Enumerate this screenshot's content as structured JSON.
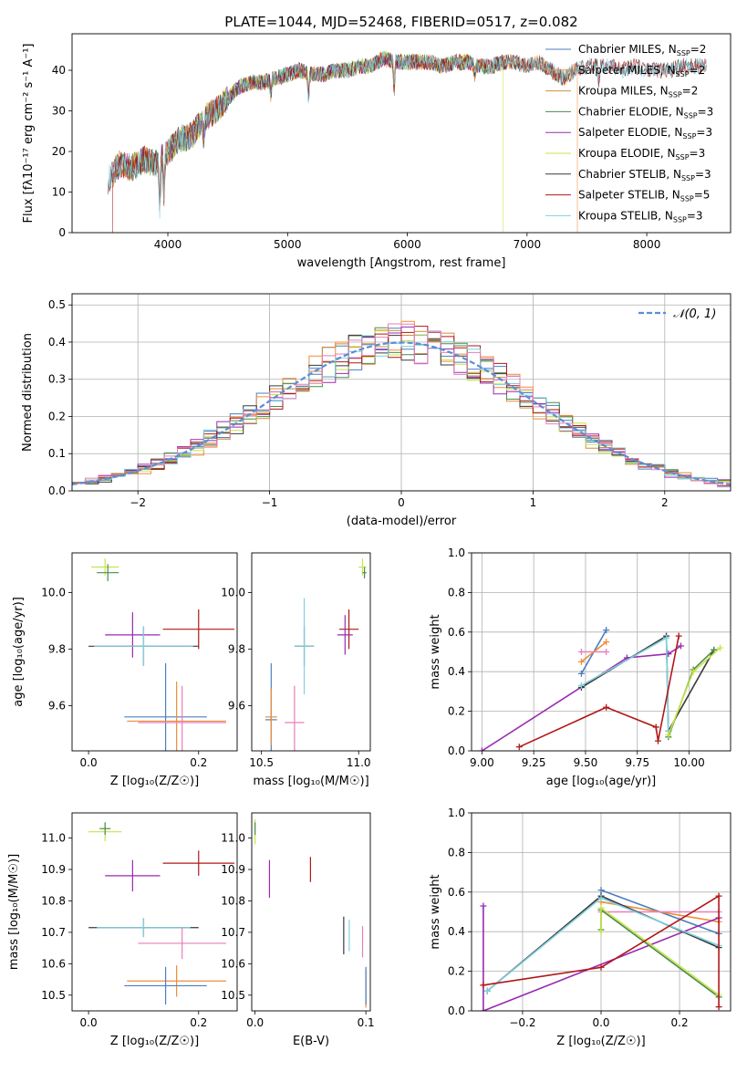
{
  "figure_title": "PLATE=1044, MJD=52468, FIBERID=0517, z=0.082",
  "palette": {
    "chab_miles": "#4a7fc1",
    "salp_miles": "#ef8c3a",
    "krou_miles": "#d78d38",
    "chab_elodie": "#4c8c4a",
    "salp_elodie": "#9a2ab1",
    "krou_elodie": "#c8e34a",
    "chab_stelib": "#3a3a3a",
    "salp_stelib": "#b01818",
    "krou_stelib": "#7fd0e0",
    "pink": "#e77fb8",
    "normal": "#5a8ed6"
  },
  "chart_data": [
    {
      "id": "spectrum",
      "type": "line",
      "title": "PLATE=1044, MJD=52468, FIBERID=0517, z=0.082",
      "xlabel": "wavelength [Angstrom, rest frame]",
      "ylabel": "Flux [fλ10⁻¹⁷ erg cm⁻² s⁻¹ A⁻¹]",
      "xlim": [
        3200,
        8700
      ],
      "ylim": [
        0,
        49
      ],
      "xticks": [
        "4000",
        "5000",
        "6000",
        "7000",
        "8000"
      ],
      "yticks": [
        "0",
        "10",
        "20",
        "30",
        "40"
      ],
      "legend_position": "top-right",
      "legend": [
        {
          "base": "Chabrier MILES, N",
          "sub": "SSP",
          "tail": "=2",
          "color": "chab_miles"
        },
        {
          "base": "Salpeter MILES, N",
          "sub": "SSP",
          "tail": "=2",
          "color": "salp_miles"
        },
        {
          "base": "Kroupa MILES, N",
          "sub": "SSP",
          "tail": "=2",
          "color": "krou_miles"
        },
        {
          "base": "Chabrier ELODIE, N",
          "sub": "SSP",
          "tail": "=3",
          "color": "chab_elodie"
        },
        {
          "base": "Salpeter ELODIE, N",
          "sub": "SSP",
          "tail": "=3",
          "color": "salp_elodie"
        },
        {
          "base": "Kroupa ELODIE, N",
          "sub": "SSP",
          "tail": "=3",
          "color": "krou_elodie"
        },
        {
          "base": "Chabrier STELIB, N",
          "sub": "SSP",
          "tail": "=3",
          "color": "chab_stelib"
        },
        {
          "base": "Salpeter STELIB, N",
          "sub": "SSP",
          "tail": "=5",
          "color": "salp_stelib"
        },
        {
          "base": "Kroupa STELIB, N",
          "sub": "SSP",
          "tail": "=3",
          "color": "krou_stelib"
        }
      ],
      "continuum": [
        [
          3500,
          13
        ],
        [
          3600,
          17
        ],
        [
          3700,
          16
        ],
        [
          3800,
          18
        ],
        [
          3900,
          17
        ],
        [
          4000,
          20
        ],
        [
          4100,
          23
        ],
        [
          4200,
          24
        ],
        [
          4300,
          28
        ],
        [
          4400,
          30
        ],
        [
          4500,
          33
        ],
        [
          4600,
          36
        ],
        [
          4700,
          37
        ],
        [
          4800,
          37
        ],
        [
          4900,
          38
        ],
        [
          5000,
          39
        ],
        [
          5100,
          40
        ],
        [
          5200,
          39
        ],
        [
          5300,
          39
        ],
        [
          5400,
          40
        ],
        [
          5500,
          40
        ],
        [
          5600,
          41
        ],
        [
          5700,
          41
        ],
        [
          5800,
          43
        ],
        [
          5900,
          42
        ],
        [
          6000,
          42
        ],
        [
          6100,
          42
        ],
        [
          6200,
          42
        ],
        [
          6300,
          41
        ],
        [
          6400,
          42
        ],
        [
          6500,
          42
        ],
        [
          6600,
          41
        ],
        [
          6700,
          41
        ],
        [
          6800,
          42
        ],
        [
          6900,
          42
        ],
        [
          7000,
          41
        ],
        [
          7100,
          42
        ],
        [
          7200,
          40
        ],
        [
          7300,
          38
        ],
        [
          7400,
          40
        ],
        [
          7500,
          41
        ],
        [
          7600,
          41
        ],
        [
          7700,
          41
        ],
        [
          7800,
          40
        ],
        [
          7900,
          41
        ],
        [
          8000,
          40
        ],
        [
          8100,
          40
        ],
        [
          8200,
          40
        ],
        [
          8300,
          41
        ],
        [
          8400,
          41
        ],
        [
          8500,
          41
        ]
      ],
      "series": [
        {
          "color": "chab_miles",
          "range": [
            3540,
            7420
          ],
          "drop": null
        },
        {
          "color": "salp_miles",
          "range": [
            3540,
            7420
          ],
          "drop": 7420
        },
        {
          "color": "krou_miles",
          "range": [
            3540,
            7420
          ],
          "drop": null
        },
        {
          "color": "chab_elodie",
          "range": [
            3540,
            6800
          ],
          "drop": null
        },
        {
          "color": "salp_elodie",
          "range": [
            3540,
            6800
          ],
          "drop": null
        },
        {
          "color": "krou_elodie",
          "range": [
            3540,
            6800
          ],
          "drop": 6800
        },
        {
          "color": "chab_stelib",
          "range": [
            3500,
            8500
          ],
          "drop": null
        },
        {
          "color": "salp_stelib",
          "range": [
            3500,
            8500
          ],
          "drop": 3540
        },
        {
          "color": "krou_stelib",
          "range": [
            3500,
            8500
          ],
          "drop": null
        }
      ]
    },
    {
      "id": "residuals",
      "type": "histogram",
      "xlabel": "(data-model)/error",
      "ylabel": "Normed distribution",
      "xlim": [
        -2.5,
        2.5
      ],
      "ylim": [
        0,
        0.53
      ],
      "xticks": [
        "−2",
        "−1",
        "0",
        "1",
        "2"
      ],
      "yticks": [
        "0.0",
        "0.1",
        "0.2",
        "0.3",
        "0.4",
        "0.5"
      ],
      "grid": true,
      "legend": "𝒩(0, 1)",
      "legend_position": "top-right",
      "bin_width": 0.1,
      "series_colors": [
        "chab_miles",
        "salp_miles",
        "krou_miles",
        "chab_elodie",
        "salp_elodie",
        "krou_elodie",
        "chab_stelib",
        "salp_stelib",
        "krou_stelib",
        "pink"
      ]
    },
    {
      "id": "age_vs_Z",
      "type": "errorbar",
      "xlabel": "Z [log₁₀(Z/Z☉)]",
      "ylabel": "age  [log₁₀(age/yr)]",
      "xlim": [
        -0.03,
        0.27
      ],
      "ylim": [
        9.44,
        10.14
      ],
      "xticks": [
        "0.0",
        "0.2"
      ],
      "yticks": [
        "9.6",
        "9.8",
        "10.0"
      ],
      "points": [
        {
          "x": 0.03,
          "xerr": 0.025,
          "y": 10.09,
          "yerr": 0.03,
          "color": "krou_elodie"
        },
        {
          "x": 0.035,
          "xerr": 0.02,
          "y": 10.07,
          "yerr": 0.03,
          "color": "chab_elodie"
        },
        {
          "x": 0.08,
          "xerr": 0.05,
          "y": 9.85,
          "yerr": 0.08,
          "color": "salp_elodie"
        },
        {
          "x": 0.2,
          "xerr": 0.065,
          "y": 9.87,
          "yerr": 0.07,
          "color": "salp_stelib"
        },
        {
          "x": 0.1,
          "xerr": 0.1,
          "y": 9.81,
          "yerr": 0.07,
          "color": "chab_stelib"
        },
        {
          "x": 0.1,
          "xerr": 0.09,
          "y": 9.81,
          "yerr": 0.07,
          "color": "krou_stelib"
        },
        {
          "x": 0.14,
          "xerr": 0.075,
          "y": 9.56,
          "yerr": 0.19,
          "color": "chab_miles"
        },
        {
          "x": 0.16,
          "xerr": 0.09,
          "y": 9.545,
          "yerr": 0.14,
          "color": "salp_miles"
        },
        {
          "x": 0.17,
          "xerr": 0.08,
          "y": 9.54,
          "yerr": 0.13,
          "color": "pink"
        }
      ]
    },
    {
      "id": "age_vs_mass",
      "type": "errorbar",
      "xlabel": "mass [log₁₀(M/M☉)]",
      "ylabel": "",
      "xlim": [
        10.45,
        11.06
      ],
      "ylim": [
        9.44,
        10.14
      ],
      "xticks": [
        "10.5",
        "11.0"
      ],
      "yticks": [
        "9.6",
        "9.8",
        "10.0"
      ],
      "points": [
        {
          "x": 11.02,
          "xerr": 0.02,
          "y": 10.09,
          "yerr": 0.03,
          "color": "krou_elodie"
        },
        {
          "x": 11.03,
          "xerr": 0.01,
          "y": 10.07,
          "yerr": 0.02,
          "color": "chab_elodie"
        },
        {
          "x": 10.95,
          "xerr": 0.05,
          "y": 9.87,
          "yerr": 0.07,
          "color": "salp_stelib"
        },
        {
          "x": 10.93,
          "xerr": 0.04,
          "y": 9.85,
          "yerr": 0.07,
          "color": "salp_elodie"
        },
        {
          "x": 10.72,
          "xerr": 0.05,
          "y": 9.81,
          "yerr": 0.07,
          "color": "chab_stelib"
        },
        {
          "x": 10.72,
          "xerr": 0.05,
          "y": 9.81,
          "yerr": 0.17,
          "color": "krou_stelib"
        },
        {
          "x": 10.55,
          "xerr": 0.03,
          "y": 9.55,
          "yerr": 0.2,
          "color": "chab_miles"
        },
        {
          "x": 10.55,
          "xerr": 0.03,
          "y": 9.56,
          "yerr": 0.1,
          "color": "salp_miles"
        },
        {
          "x": 10.67,
          "xerr": 0.05,
          "y": 9.54,
          "yerr": 0.13,
          "color": "pink"
        }
      ]
    },
    {
      "id": "mass_weight_vs_age",
      "type": "line",
      "xlabel": "age  [log₁₀(age/yr)]",
      "ylabel": "mass weight",
      "xlim": [
        8.95,
        10.2
      ],
      "ylim": [
        0,
        1
      ],
      "xticks": [
        "9.00",
        "9.25",
        "9.50",
        "9.75",
        "10.00"
      ],
      "yticks": [
        "0.0",
        "0.2",
        "0.4",
        "0.6",
        "0.8",
        "1.0"
      ],
      "grid": true,
      "series": [
        {
          "color": "chab_miles",
          "x": [
            9.48,
            9.6
          ],
          "y": [
            0.39,
            0.61
          ]
        },
        {
          "color": "salp_miles",
          "x": [
            9.48,
            9.6
          ],
          "y": [
            0.45,
            0.55
          ]
        },
        {
          "color": "pink",
          "x": [
            9.48,
            9.6
          ],
          "y": [
            0.5,
            0.5
          ]
        },
        {
          "color": "salp_elodie",
          "x": [
            9.0,
            9.7,
            9.9,
            9.96
          ],
          "y": [
            0.0,
            0.47,
            0.49,
            0.53
          ]
        },
        {
          "color": "chab_stelib",
          "x": [
            9.48,
            9.89,
            9.9,
            10.12
          ],
          "y": [
            0.32,
            0.58,
            0.1,
            0.51
          ]
        },
        {
          "color": "krou_stelib",
          "x": [
            9.48,
            9.89,
            9.9
          ],
          "y": [
            0.33,
            0.57,
            0.1
          ]
        },
        {
          "color": "chab_elodie",
          "x": [
            9.9,
            10.02,
            10.12
          ],
          "y": [
            0.07,
            0.41,
            0.51
          ]
        },
        {
          "color": "krou_elodie",
          "x": [
            9.9,
            10.02,
            10.15
          ],
          "y": [
            0.08,
            0.4,
            0.52
          ]
        },
        {
          "color": "salp_stelib",
          "x": [
            9.18,
            9.6,
            9.84,
            9.85,
            9.95
          ],
          "y": [
            0.02,
            0.22,
            0.12,
            0.05,
            0.58
          ]
        }
      ]
    },
    {
      "id": "mass_vs_Z",
      "type": "errorbar",
      "xlabel": "Z [log₁₀(Z/Z☉)]",
      "ylabel": "mass [log₁₀(M/M☉)]",
      "xlim": [
        -0.03,
        0.27
      ],
      "ylim": [
        10.45,
        11.08
      ],
      "xticks": [
        "0.0",
        "0.2"
      ],
      "yticks": [
        "10.5",
        "10.6",
        "10.7",
        "10.8",
        "10.9",
        "11.0"
      ],
      "points": [
        {
          "x": 0.03,
          "xerr": 0.03,
          "y": 11.02,
          "yerr": 0.03,
          "color": "krou_elodie"
        },
        {
          "x": 0.03,
          "xerr": 0.01,
          "y": 11.03,
          "yerr": 0.02,
          "color": "chab_elodie"
        },
        {
          "x": 0.2,
          "xerr": 0.065,
          "y": 10.92,
          "yerr": 0.04,
          "color": "salp_stelib"
        },
        {
          "x": 0.08,
          "xerr": 0.05,
          "y": 10.88,
          "yerr": 0.05,
          "color": "salp_elodie"
        },
        {
          "x": 0.1,
          "xerr": 0.1,
          "y": 10.715,
          "yerr": 0.03,
          "color": "chab_stelib"
        },
        {
          "x": 0.1,
          "xerr": 0.085,
          "y": 10.715,
          "yerr": 0.03,
          "color": "krou_stelib"
        },
        {
          "x": 0.17,
          "xerr": 0.08,
          "y": 10.665,
          "yerr": 0.05,
          "color": "pink"
        },
        {
          "x": 0.16,
          "xerr": 0.09,
          "y": 10.545,
          "yerr": 0.05,
          "color": "salp_miles"
        },
        {
          "x": 0.14,
          "xerr": 0.075,
          "y": 10.53,
          "yerr": 0.06,
          "color": "chab_miles"
        }
      ]
    },
    {
      "id": "mass_vs_ebv",
      "type": "errorbar",
      "xlabel": "E(B-V)",
      "ylabel": "",
      "xlim": [
        -0.003,
        0.104
      ],
      "ylim": [
        10.45,
        11.08
      ],
      "xticks": [
        "0.0",
        "0.1"
      ],
      "yticks": [
        "10.5",
        "10.6",
        "10.7",
        "10.8",
        "10.9",
        "11.0"
      ],
      "points": [
        {
          "x": 0.0,
          "xerr": 0.0,
          "y": 11.02,
          "yerr": 0.04,
          "color": "krou_elodie"
        },
        {
          "x": 0.0,
          "xerr": 0.0,
          "y": 11.03,
          "yerr": 0.02,
          "color": "chab_elodie"
        },
        {
          "x": 0.013,
          "xerr": 0.0,
          "y": 10.87,
          "yerr": 0.06,
          "color": "salp_elodie"
        },
        {
          "x": 0.05,
          "xerr": 0.0,
          "y": 10.9,
          "yerr": 0.04,
          "color": "salp_stelib"
        },
        {
          "x": 0.08,
          "xerr": 0.0,
          "y": 10.69,
          "yerr": 0.06,
          "color": "chab_stelib"
        },
        {
          "x": 0.085,
          "xerr": 0.0,
          "y": 10.69,
          "yerr": 0.05,
          "color": "krou_stelib"
        },
        {
          "x": 0.097,
          "xerr": 0.0,
          "y": 10.67,
          "yerr": 0.05,
          "color": "pink"
        },
        {
          "x": 0.1,
          "xerr": 0.0,
          "y": 10.52,
          "yerr": 0.06,
          "color": "salp_miles"
        },
        {
          "x": 0.1,
          "xerr": 0.0,
          "y": 10.53,
          "yerr": 0.06,
          "color": "chab_miles"
        }
      ]
    },
    {
      "id": "mass_weight_vs_Z",
      "type": "line",
      "xlabel": "Z [log₁₀(Z/Z☉)]",
      "ylabel": "mass weight",
      "xlim": [
        -0.33,
        0.33
      ],
      "ylim": [
        0,
        1
      ],
      "xticks": [
        "−0.2",
        "0.0",
        "0.2"
      ],
      "yticks": [
        "0.0",
        "0.2",
        "0.4",
        "0.6",
        "0.8",
        "1.0"
      ],
      "grid": true,
      "series": [
        {
          "color": "chab_miles",
          "x": [
            0.0,
            0.3
          ],
          "y": [
            0.61,
            0.39
          ]
        },
        {
          "color": "salp_miles",
          "x": [
            0.0,
            0.3
          ],
          "y": [
            0.55,
            0.45
          ]
        },
        {
          "color": "pink",
          "x": [
            0.0,
            0.3
          ],
          "y": [
            0.5,
            0.5
          ]
        },
        {
          "color": "salp_elodie",
          "x": [
            -0.3,
            -0.3,
            0.3
          ],
          "y": [
            0.53,
            0.0,
            0.47
          ]
        },
        {
          "color": "chab_stelib",
          "x": [
            -0.29,
            0.0,
            0.3
          ],
          "y": [
            0.1,
            0.58,
            0.32
          ]
        },
        {
          "color": "krou_stelib",
          "x": [
            -0.29,
            0.0,
            0.3
          ],
          "y": [
            0.1,
            0.57,
            0.33
          ]
        },
        {
          "color": "chab_elodie",
          "x": [
            0.0,
            0.0,
            0.3
          ],
          "y": [
            0.41,
            0.51,
            0.07
          ]
        },
        {
          "color": "krou_elodie",
          "x": [
            0.0,
            0.0,
            0.3
          ],
          "y": [
            0.4,
            0.52,
            0.08
          ]
        },
        {
          "color": "salp_stelib",
          "x": [
            -0.3,
            0.0,
            0.3,
            0.3
          ],
          "y": [
            0.13,
            0.22,
            0.58,
            0.02
          ]
        }
      ]
    }
  ]
}
